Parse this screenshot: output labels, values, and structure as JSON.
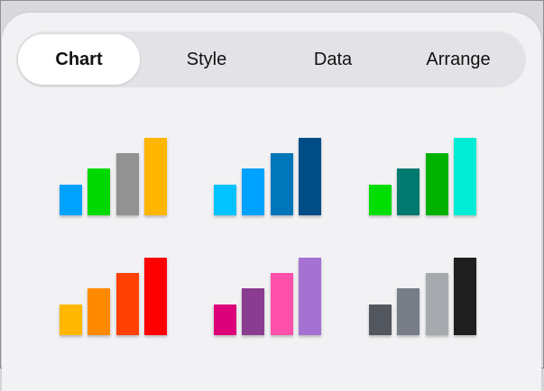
{
  "tabs": [
    {
      "label": "Chart",
      "selected": true
    },
    {
      "label": "Style",
      "selected": false
    },
    {
      "label": "Data",
      "selected": false
    },
    {
      "label": "Arrange",
      "selected": false
    }
  ],
  "chart_styles": [
    {
      "name": "style-1",
      "colors": [
        "#00a2ff",
        "#00d900",
        "#929292",
        "#ffb600"
      ]
    },
    {
      "name": "style-2",
      "colors": [
        "#00c3ff",
        "#00a2ff",
        "#0076ba",
        "#004d86"
      ]
    },
    {
      "name": "style-3",
      "colors": [
        "#00dd00",
        "#00796f",
        "#00b200",
        "#00ecd4"
      ]
    },
    {
      "name": "style-4",
      "colors": [
        "#ffb700",
        "#ff8a00",
        "#ff4000",
        "#ff0000"
      ]
    },
    {
      "name": "style-5",
      "colors": [
        "#dc0079",
        "#8a3c90",
        "#ff50aa",
        "#a572d2"
      ]
    },
    {
      "name": "style-6",
      "colors": [
        "#51565f",
        "#787d88",
        "#a6aaae",
        "#1e1e1e"
      ]
    }
  ]
}
